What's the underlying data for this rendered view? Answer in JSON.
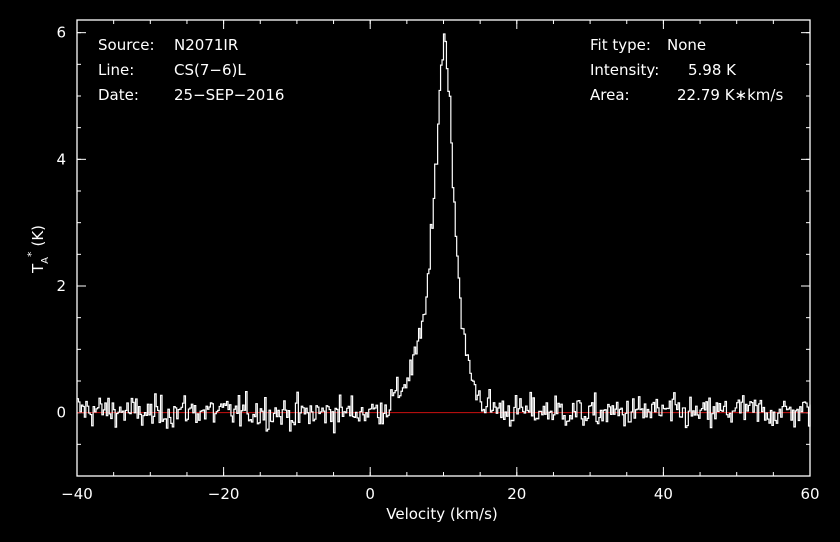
{
  "header": {
    "left": [
      {
        "key": "Source:",
        "value": "N2071IR"
      },
      {
        "key": "Line:",
        "value": "CS(7−6)L"
      },
      {
        "key": "Date:",
        "value": "25−SEP−2016"
      }
    ],
    "right": [
      {
        "key": "Fit type:",
        "value": "None"
      },
      {
        "key": "Intensity:",
        "value": "5.98 K"
      },
      {
        "key": "Area:",
        "value": "22.79 K∗km/s"
      }
    ]
  },
  "colors": {
    "background": "#000000",
    "axes": "#ffffff",
    "spectrum": "#ffffff",
    "baseline": "#cc1111"
  },
  "chart_data": {
    "type": "line",
    "xlabel": "Velocity (km/s)",
    "ylabel": "T",
    "ylabel_sub": "A",
    "ylabel_sup": "*",
    "ylabel_unit": "(K)",
    "xlim": [
      -40,
      60
    ],
    "ylim": [
      -1,
      6.2
    ],
    "x_ticks": [
      -40,
      -20,
      0,
      20,
      40,
      60
    ],
    "x_tick_labels": [
      "−40",
      "−20",
      "0",
      "20",
      "40",
      "60"
    ],
    "y_ticks": [
      0,
      2,
      4,
      6
    ],
    "y_tick_labels": [
      "0",
      "2",
      "4",
      "6"
    ],
    "x_minor_step": 5,
    "y_minor_step": 0.5,
    "grid": false,
    "baseline": 0,
    "peak_velocity": 10,
    "peak_intensity": 5.98,
    "series": [
      {
        "points": [
          [
            -40,
            0.05
          ],
          [
            -35,
            0.03
          ],
          [
            -30,
            -0.02
          ],
          [
            -25,
            0.04
          ],
          [
            -20,
            0.0
          ],
          [
            -15,
            0.02
          ],
          [
            -10,
            -0.03
          ],
          [
            -5,
            0.01
          ],
          [
            0,
            0.02
          ],
          [
            2,
            0.08
          ],
          [
            4,
            0.35
          ],
          [
            5,
            0.55
          ],
          [
            6,
            0.85
          ],
          [
            7,
            1.3
          ],
          [
            8,
            2.3
          ],
          [
            8.5,
            3.1
          ],
          [
            9,
            4.2
          ],
          [
            9.5,
            5.3
          ],
          [
            10,
            5.98
          ],
          [
            10.5,
            5.5
          ],
          [
            11,
            4.3
          ],
          [
            11.5,
            3.1
          ],
          [
            12,
            2.1
          ],
          [
            12.5,
            1.4
          ],
          [
            13,
            0.9
          ],
          [
            14,
            0.45
          ],
          [
            15,
            0.2
          ],
          [
            16,
            0.1
          ],
          [
            18,
            0.04
          ],
          [
            20,
            0.02
          ],
          [
            25,
            0.03
          ],
          [
            30,
            -0.02
          ],
          [
            35,
            0.01
          ],
          [
            40,
            0.02
          ],
          [
            45,
            -0.03
          ],
          [
            50,
            0.04
          ],
          [
            55,
            0.0
          ],
          [
            60,
            0.03
          ]
        ],
        "noise_rms": 0.17,
        "channel_width": 0.2
      }
    ]
  }
}
